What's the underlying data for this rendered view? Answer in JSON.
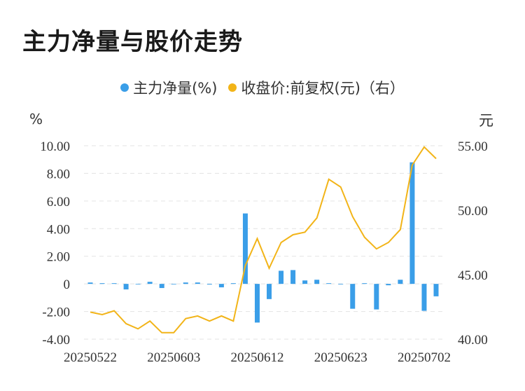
{
  "title": "主力净量与股价走势",
  "legend": {
    "net": "主力净量(%)",
    "price": "收盘价:前复权(元)（右）"
  },
  "units": {
    "left": "%",
    "right": "元"
  },
  "colors": {
    "bar": "#3a9ee8",
    "line": "#f2b418",
    "grid": "#e3e3e3"
  },
  "chart_data": {
    "type": "bar+line",
    "x_labels": [
      "20250522",
      "20250603",
      "20250612",
      "20250623",
      "20250702"
    ],
    "y_left": {
      "lim": [
        -4,
        10
      ],
      "ticks": [
        "-4.00",
        "-2.00",
        "0",
        "2.00",
        "4.00",
        "6.00",
        "8.00",
        "10.00"
      ]
    },
    "y_right": {
      "lim": [
        40,
        55
      ],
      "ticks": [
        "40.00",
        "45.00",
        "50.00",
        "55.00"
      ]
    },
    "grid": true,
    "series": [
      {
        "name": "主力净量(%)",
        "type": "bar",
        "values": [
          0.1,
          0.05,
          0.05,
          -0.4,
          0.0,
          0.15,
          -0.3,
          0.0,
          0.1,
          0.1,
          -0.05,
          -0.25,
          0.05,
          5.1,
          -2.8,
          -1.1,
          0.95,
          1.0,
          0.25,
          0.3,
          0.05,
          0.0,
          -1.8,
          0.05,
          -1.85,
          -0.1,
          0.3,
          8.8,
          -1.95,
          -0.9
        ]
      },
      {
        "name": "收盘价:前复权(元)（右）",
        "type": "line",
        "values": [
          42.1,
          41.9,
          42.2,
          41.2,
          40.8,
          41.4,
          40.5,
          40.5,
          41.6,
          41.8,
          41.4,
          41.8,
          41.4,
          45.7,
          47.8,
          45.5,
          47.5,
          48.1,
          48.3,
          49.4,
          52.4,
          51.8,
          49.5,
          47.9,
          47.0,
          47.5,
          48.5,
          53.5,
          54.9,
          54.0
        ]
      }
    ]
  }
}
